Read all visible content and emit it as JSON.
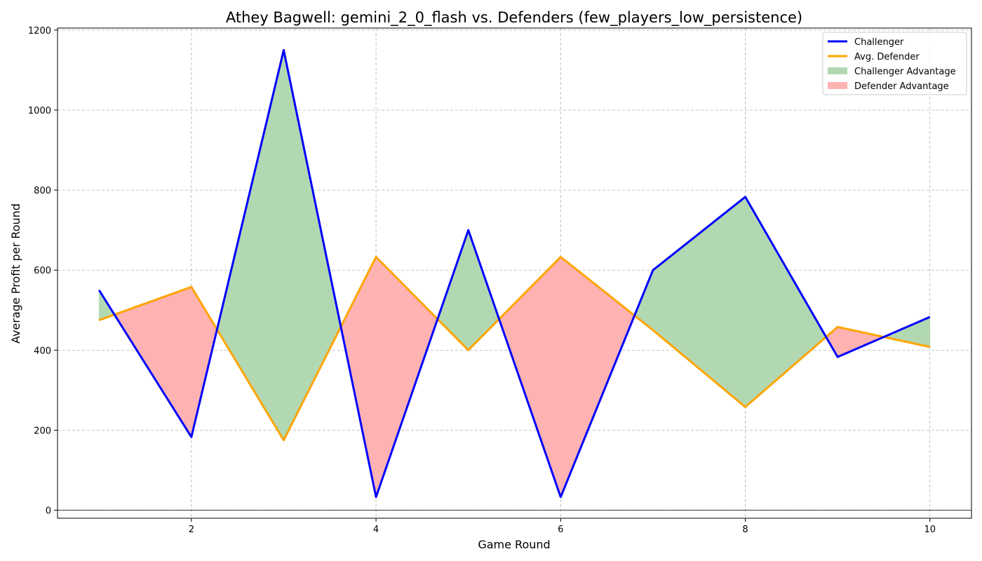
{
  "chart_data": {
    "type": "line",
    "title": "Athey Bagwell: gemini_2_0_flash vs. Defenders (few_players_low_persistence)",
    "xlabel": "Game Round",
    "ylabel": "Average Profit per Round",
    "x": [
      1,
      2,
      3,
      4,
      5,
      6,
      7,
      8,
      9,
      10
    ],
    "xlim": [
      0.55,
      10.45
    ],
    "ylim": [
      -20,
      1205
    ],
    "xticks": [
      2,
      4,
      6,
      8,
      10
    ],
    "yticks": [
      0,
      200,
      400,
      600,
      800,
      1000,
      1200
    ],
    "grid": true,
    "legend_position": "top-right",
    "series": [
      {
        "name": "Challenger",
        "color": "#0000ff",
        "values": [
          550,
          183,
          1150,
          33,
          700,
          33,
          600,
          783,
          383,
          483
        ]
      },
      {
        "name": "Avg. Defender",
        "color": "#ffa500",
        "values": [
          475,
          558,
          175,
          633,
          400,
          633,
          450,
          258,
          458,
          408
        ]
      }
    ],
    "fills": [
      {
        "name": "Challenger Advantage",
        "color": "#b2d8b2"
      },
      {
        "name": "Defender Advantage",
        "color": "#ffb2b2"
      }
    ]
  }
}
